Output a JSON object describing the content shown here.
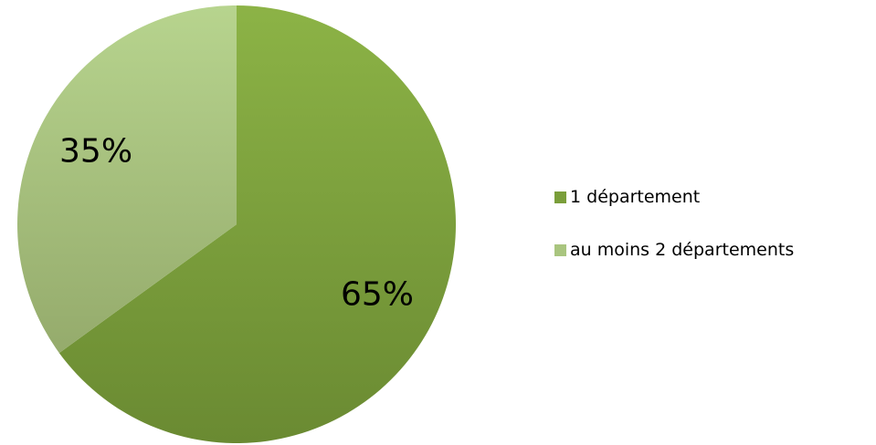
{
  "chart_data": {
    "type": "pie",
    "categories": [
      "1 département",
      "au moins 2 départements"
    ],
    "values": [
      65,
      35
    ],
    "labels": [
      "65%",
      "35%"
    ],
    "colors": [
      "#7a9e3a",
      "#a9c57f"
    ],
    "start": "12 o'clock",
    "direction": "clockwise",
    "legend_position": "right"
  }
}
